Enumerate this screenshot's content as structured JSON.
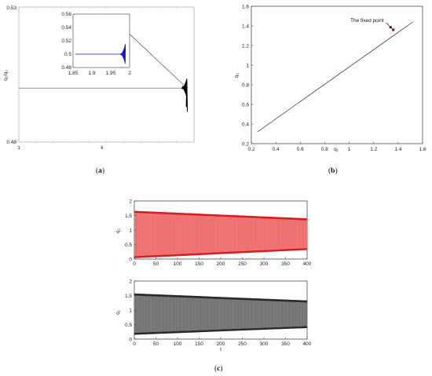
{
  "chart_data": [
    {
      "id": "a",
      "type": "line",
      "panel_label": "a",
      "xlabel": "k",
      "ylabel": "q₁/q₂",
      "ylim": [
        0.48,
        0.53
      ],
      "xticks": [
        "1"
      ],
      "yticks": [
        "0.53",
        "0.48"
      ],
      "series": [
        {
          "x": [
            1,
            1.9,
            1.97,
            1.985,
            1.995,
            2.0
          ],
          "y": [
            0.5,
            0.5,
            0.5,
            0.5,
            0.5,
            0.5
          ],
          "color": "#333333"
        }
      ],
      "inset": {
        "xlim": [
          1.85,
          2
        ],
        "ylim": [
          0.48,
          0.56
        ],
        "xticks": [
          "1.85",
          "1.9",
          "1.95",
          "2"
        ],
        "yticks": [
          "0.56",
          "0.54",
          "0.52",
          "0.5",
          "0.48"
        ],
        "series_color": "#1414d2",
        "level": 0.5
      }
    },
    {
      "id": "b",
      "type": "line",
      "panel_label": "b",
      "xlabel": "q₁",
      "ylabel": "q₂",
      "xlim": [
        0.2,
        1.6
      ],
      "ylim": [
        0.2,
        1.6
      ],
      "xticks": [
        "0.2",
        "0.4",
        "0.6",
        "0.8",
        "1",
        "1.2",
        "1.4",
        "1.6"
      ],
      "yticks": [
        "0.2",
        "0.4",
        "0.6",
        "0.8",
        "1",
        "1.2",
        "1.4",
        "1.6"
      ],
      "series": [
        {
          "x": [
            0.25,
            1.52
          ],
          "y": [
            0.32,
            1.44
          ],
          "color": "#222222"
        }
      ],
      "fixed_point": {
        "x": 1.36,
        "y": 1.36,
        "color": "#c0143c"
      },
      "annotation": "The fixed point"
    },
    {
      "id": "c-top",
      "type": "area",
      "panel_label": "c",
      "xlabel": "",
      "ylabel": "q₂",
      "xlim": [
        0,
        400
      ],
      "ylim": [
        0,
        2
      ],
      "xticks": [
        "0",
        "50",
        "100",
        "150",
        "200",
        "250",
        "300",
        "350",
        "400"
      ],
      "yticks": [
        "0",
        "0.5",
        "1",
        "1.5",
        "2"
      ],
      "band": {
        "x": [
          0,
          400
        ],
        "upper": [
          1.66,
          1.4
        ],
        "lower": [
          0.1,
          0.38
        ]
      },
      "fill_color": "#f27b7b",
      "edge_color": "#d42020"
    },
    {
      "id": "c-bottom",
      "type": "area",
      "xlabel": "t",
      "ylabel": "q₁",
      "xlim": [
        0,
        400
      ],
      "ylim": [
        0,
        2
      ],
      "xticks": [
        "0",
        "50",
        "100",
        "150",
        "200",
        "250",
        "300",
        "350",
        "400"
      ],
      "yticks": [
        "0",
        "0.5",
        "1",
        "1.5",
        "2"
      ],
      "band": {
        "x": [
          0,
          400
        ],
        "upper": [
          1.57,
          1.33
        ],
        "lower": [
          0.22,
          0.45
        ]
      },
      "fill_color": "#7f7f7f",
      "edge_color": "#2a2a2a"
    }
  ]
}
